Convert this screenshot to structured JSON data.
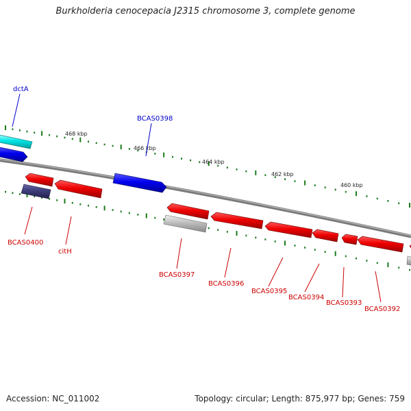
{
  "title": "Burkholderia cenocepacia J2315 chromosome 3, complete genome",
  "footer": {
    "accession": "Accession: NC_011002",
    "summary": "Topology: circular; Length: 875,977 bp; Genes: 759"
  },
  "colors": {
    "backbone": "#777777",
    "tick": "#1a7a1a",
    "tick_label": "#222222",
    "forward_gene": "#0000ee",
    "forward_label": "#0000cc",
    "reverse_gene": "#ee0000",
    "reverse_label": "#cc0000",
    "cyan_gene": "#00e6e6",
    "dark_gene": "#3c3c7a",
    "gray_gene": "#bdbdbd"
  },
  "scale_labels": [
    "468 kbp",
    "466 kbp",
    "464 kbp",
    "462 kbp",
    "460 kbp"
  ],
  "gene_labels": {
    "forward": [
      "dctA",
      "BCAS0398"
    ],
    "reverse": [
      "BCAS0400",
      "citH",
      "BCAS0397",
      "BCAS0396",
      "BCAS0395",
      "BCAS0394",
      "BCAS0393",
      "BCAS0392"
    ]
  }
}
